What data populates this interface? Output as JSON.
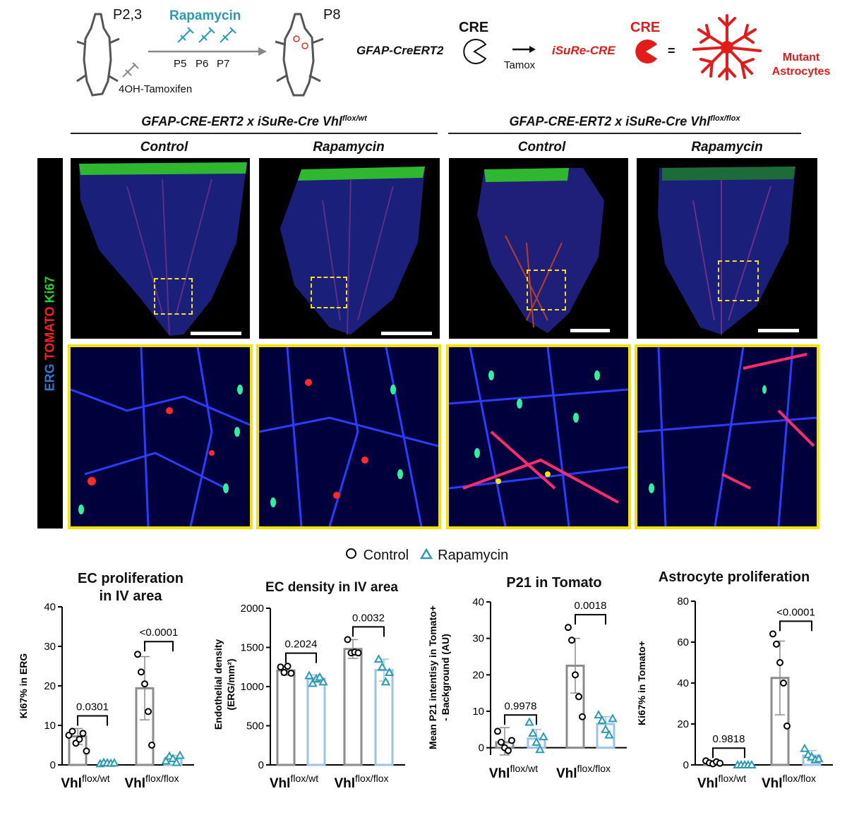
{
  "schematic": {
    "pup_age_label": "P2,3",
    "drug_label": "Rapamycin",
    "injection_days": [
      "P5",
      "P6",
      "P7"
    ],
    "tamoxifen_label": "4OH-Tamoxifen",
    "end_age_label": "P8",
    "cre_label": "CRE",
    "gfap_line": "GFAP-CreERT2",
    "tamox_label": "Tamox",
    "isure_label": "iSuRe-CRE",
    "cre_label_red": "CRE",
    "equals": "=",
    "mutant_label_line1": "Mutant",
    "mutant_label_line2": "Astrocytes"
  },
  "genotype_headers": [
    {
      "text": "GFAP-CRE-ERT2 x iSuRe-Cre Vhl",
      "sup": "flox/wt"
    },
    {
      "text": "GFAP-CRE-ERT2 x iSuRe-Cre Vhl",
      "sup": "flox/flox"
    }
  ],
  "condition_labels": [
    "Control",
    "Rapamycin",
    "Control",
    "Rapamycin"
  ],
  "stain_labels": {
    "erg": "ERG",
    "tomato": "TOMATO",
    "ki67": "Ki67"
  },
  "stain_colors": {
    "erg": "#2a7bd6",
    "tomato": "#ff1f1f",
    "ki67": "#26d426",
    "highlight_box": "#f2e400",
    "control_marker": "#000000",
    "rapamycin_marker": "#2a9bb0",
    "control_bar": "#8c8c8c",
    "rapamycin_bar": "#9cc3ea"
  },
  "legend": {
    "control": "Control",
    "rapamycin": "Rapamycin"
  },
  "group_label_base": "Vhl",
  "chart_data": [
    {
      "type": "bar",
      "title_line1": "EC proliferation",
      "title_line2": "in IV area",
      "ylabel": "Ki67% in ERG",
      "ylim": [
        0,
        40
      ],
      "yticks": [
        "0",
        "10",
        "20",
        "30",
        "40"
      ],
      "categories": [
        "flox/wt",
        "flox/flox"
      ],
      "series": [
        {
          "name": "Control",
          "values": [
            7.2,
            19.4
          ],
          "sd": [
            2.0,
            8.0
          ],
          "points": [
            [
              7.5,
              8.5,
              5.5,
              6.5,
              8.0,
              3.5
            ],
            [
              28.0,
              23.5,
              20.5,
              13.5,
              5.0
            ]
          ]
        },
        {
          "name": "Rapamycin",
          "values": [
            0.5,
            1.6
          ],
          "sd": [
            0.3,
            0.8
          ],
          "points": [
            [
              0.3,
              0.6,
              0.5,
              0.4,
              0.5
            ],
            [
              1.0,
              2.2,
              1.6,
              0.6,
              2.4
            ]
          ]
        }
      ],
      "pvalues": [
        "0.0301",
        "<0.0001"
      ]
    },
    {
      "type": "bar",
      "title_line1": "EC density in IV area",
      "title_line2": "",
      "ylabel": "Endothelial density",
      "ylabel2": "(ERG/mm²)",
      "ylim": [
        0,
        2000
      ],
      "yticks": [
        "0",
        "500",
        "1000",
        "1500",
        "2000"
      ],
      "categories": [
        "flox/wt",
        "flox/flox"
      ],
      "series": [
        {
          "name": "Control",
          "values": [
            1205,
            1480
          ],
          "sd": [
            60,
            120
          ],
          "points": [
            [
              1250,
              1180,
              1260,
              1170
            ],
            [
              1600,
              1430,
              1440,
              1430
            ]
          ]
        },
        {
          "name": "Rapamycin",
          "values": [
            1100,
            1210
          ],
          "sd": [
            50,
            140
          ],
          "points": [
            [
              1140,
              1040,
              1100,
              1120,
              1060
            ],
            [
              1350,
              1250,
              1060,
              1180
            ]
          ]
        }
      ],
      "pvalues": [
        "0.2024",
        "0.0032"
      ]
    },
    {
      "type": "bar",
      "title_line1": "P21 in Tomato",
      "title_line2": "",
      "ylabel": "Mean P21 intentisy in Tomato+",
      "ylabel2": "- Background  (AU)",
      "ylim": [
        -2,
        40
      ],
      "yticks": [
        "0",
        "10",
        "20",
        "30",
        "40"
      ],
      "categories": [
        "flox/wt",
        "flox/flox"
      ],
      "series": [
        {
          "name": "Control",
          "values": [
            1.5,
            22.5
          ],
          "sd": [
            4.0,
            7.5
          ],
          "points": [
            [
              4.5,
              1.5,
              0,
              -0.8,
              2.0
            ],
            [
              33.0,
              29.5,
              20.0,
              14.0,
              8.5
            ]
          ]
        },
        {
          "name": "Rapamycin",
          "values": [
            2.5,
            6.5
          ],
          "sd": [
            2.5,
            2.0
          ],
          "points": [
            [
              7.0,
              4.0,
              1.5,
              -0.5,
              3.0
            ],
            [
              9.0,
              7.5,
              5.0,
              3.5,
              8.0
            ]
          ]
        }
      ],
      "pvalues": [
        "0.9978",
        "0.0018"
      ]
    },
    {
      "type": "bar",
      "title_line1": "Astrocyte proliferation",
      "title_line2": "",
      "ylabel": "Ki67% in Tomato+",
      "ylim": [
        0,
        80
      ],
      "yticks": [
        "0",
        "20",
        "40",
        "60",
        "80"
      ],
      "categories": [
        "flox/wt",
        "flox/flox"
      ],
      "series": [
        {
          "name": "Control",
          "values": [
            1.0,
            42.5
          ],
          "sd": [
            1.0,
            18.0
          ],
          "points": [
            [
              2.0,
              1.0,
              0.5,
              1.5,
              0.8
            ],
            [
              64.0,
              59.0,
              50.0,
              40.0,
              19.0
            ]
          ]
        },
        {
          "name": "Rapamycin",
          "values": [
            0.2,
            4.5
          ],
          "sd": [
            0.2,
            2.5
          ],
          "points": [
            [
              0,
              0,
              0,
              0,
              0
            ],
            [
              8.0,
              5.0,
              4.0,
              2.5,
              3.0
            ]
          ]
        }
      ],
      "pvalues": [
        "0.9818",
        "<0.0001"
      ]
    }
  ]
}
